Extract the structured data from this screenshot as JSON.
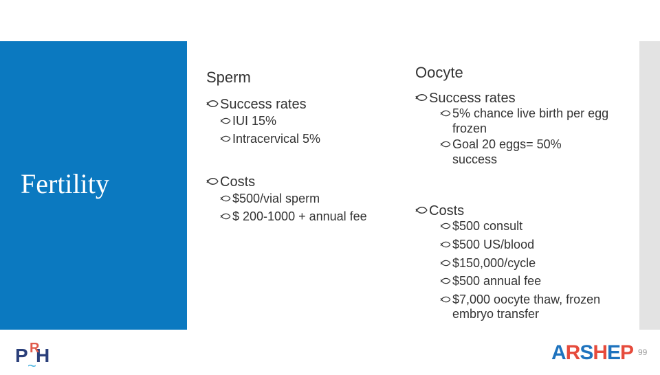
{
  "slide": {
    "title": "Fertility",
    "page_number": "99",
    "colors": {
      "panel": "#0b79c0",
      "text": "#333333",
      "strip": "#e3e3e3"
    }
  },
  "sperm": {
    "heading": "Sperm",
    "success_label": "Success rates",
    "success_items": [
      "IUI 15%",
      "Intracervical 5%"
    ],
    "costs_label": "Costs",
    "cost_items": [
      "$500/vial sperm",
      "$ 200-1000 + annual fee"
    ]
  },
  "oocyte": {
    "heading": "Oocyte",
    "success_label": "Success rates",
    "success_items": [
      "5% chance live birth per egg frozen",
      "Goal 20 eggs= 50% success"
    ],
    "costs_label": "Costs",
    "cost_items": [
      "$500 consult",
      "$500 US/blood",
      "$150,000/cycle",
      "$500 annual fee",
      "$7,000 oocyte thaw, frozen embryo transfer"
    ]
  },
  "logos": {
    "prh_letters": "P H",
    "prh_r": "R",
    "prh_wave": "~",
    "arshep": [
      "A",
      "R",
      "S",
      "H",
      "E",
      "P"
    ]
  }
}
